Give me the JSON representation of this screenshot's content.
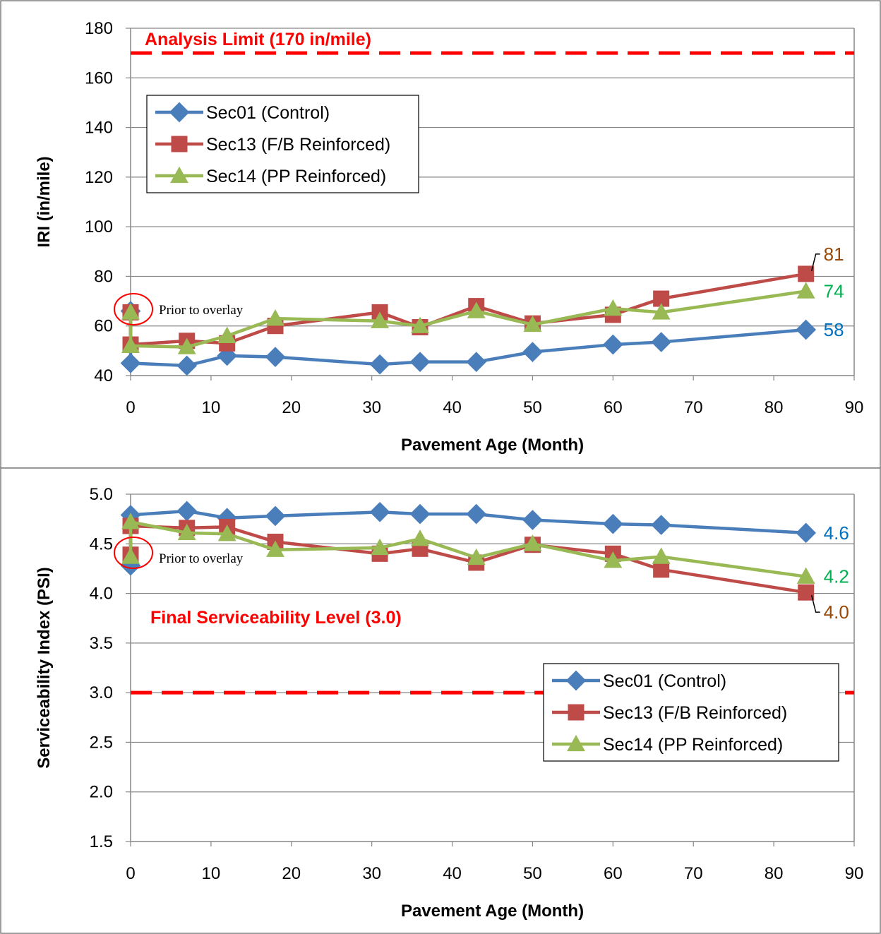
{
  "colors": {
    "sec01": "#4a7ebb",
    "sec13": "#be4b48",
    "sec14": "#98b954",
    "limit": "#ff0000",
    "grid": "#868686",
    "label_sec01": "#0070c0",
    "label_sec13": "#984807",
    "label_sec14": "#00b050"
  },
  "chart_data": [
    {
      "type": "line",
      "xlabel": "Pavement Age (Month)",
      "ylabel": "IRI (in/mile)",
      "xlim": [
        0,
        90
      ],
      "ylim": [
        40,
        180
      ],
      "xticks": [
        0,
        10,
        20,
        30,
        40,
        50,
        60,
        70,
        80,
        90
      ],
      "yticks": [
        40,
        60,
        80,
        100,
        120,
        140,
        160,
        180
      ],
      "grid": "horizontal",
      "legend_placement": "top-left",
      "reference_line": {
        "value": 170,
        "label": "Analysis Limit (170 in/mile)"
      },
      "annotation": "Prior to overlay",
      "series": [
        {
          "name": "Sec01 (Control)",
          "key": "sec01",
          "x": [
            0,
            0,
            7,
            12,
            18,
            31,
            36,
            43,
            50,
            60,
            66,
            84
          ],
          "y": [
            66,
            45,
            44,
            48,
            47.5,
            44.5,
            45.5,
            45.5,
            49.5,
            52.5,
            53.5,
            58.5
          ],
          "end_label": "58"
        },
        {
          "name": "Sec13 (F/B Reinforced)",
          "key": "sec13",
          "x": [
            0,
            0,
            7,
            12,
            18,
            31,
            36,
            43,
            50,
            60,
            66,
            84
          ],
          "y": [
            65.5,
            52.5,
            54,
            53,
            60,
            65.5,
            59.5,
            68,
            61,
            64.5,
            71,
            81
          ],
          "end_label": "81"
        },
        {
          "name": "Sec14 (PP Reinforced)",
          "key": "sec14",
          "x": [
            0,
            0,
            7,
            12,
            18,
            31,
            36,
            43,
            50,
            60,
            66,
            84
          ],
          "y": [
            65.5,
            52,
            51.5,
            56,
            63,
            62,
            60,
            66,
            60.5,
            67,
            65.5,
            74
          ],
          "end_label": "74"
        }
      ]
    },
    {
      "type": "line",
      "xlabel": "Pavement Age (Month)",
      "ylabel": "Serviceability Index (PSI)",
      "xlim": [
        0,
        90
      ],
      "ylim": [
        1.5,
        5.0
      ],
      "xticks": [
        0,
        10,
        20,
        30,
        40,
        50,
        60,
        70,
        80,
        90
      ],
      "yticks": [
        "1.5",
        "2.0",
        "2.5",
        "3.0",
        "3.5",
        "4.0",
        "4.5",
        "5.0"
      ],
      "grid": "horizontal",
      "legend_placement": "bottom-right",
      "reference_line": {
        "value": 3.0,
        "label": "Final Serviceability  Level (3.0)"
      },
      "annotation": "Prior to overlay",
      "series": [
        {
          "name": "Sec01 (Control)",
          "key": "sec01",
          "x": [
            0,
            0,
            7,
            12,
            18,
            31,
            36,
            43,
            50,
            60,
            66,
            84
          ],
          "y": [
            4.28,
            4.79,
            4.83,
            4.76,
            4.78,
            4.82,
            4.8,
            4.8,
            4.74,
            4.7,
            4.69,
            4.61
          ],
          "end_label": "4.6"
        },
        {
          "name": "Sec13 (F/B Reinforced)",
          "key": "sec13",
          "x": [
            0,
            0,
            7,
            12,
            18,
            31,
            36,
            43,
            50,
            60,
            66,
            84
          ],
          "y": [
            4.39,
            4.68,
            4.66,
            4.67,
            4.52,
            4.4,
            4.45,
            4.31,
            4.49,
            4.4,
            4.24,
            4.01
          ],
          "end_label": "4.0"
        },
        {
          "name": "Sec14 (PP Reinforced)",
          "key": "sec14",
          "x": [
            0,
            0,
            7,
            12,
            18,
            31,
            36,
            43,
            50,
            60,
            66,
            84
          ],
          "y": [
            4.37,
            4.72,
            4.61,
            4.6,
            4.44,
            4.46,
            4.55,
            4.36,
            4.5,
            4.33,
            4.37,
            4.17
          ],
          "end_label": "4.2"
        }
      ]
    }
  ]
}
